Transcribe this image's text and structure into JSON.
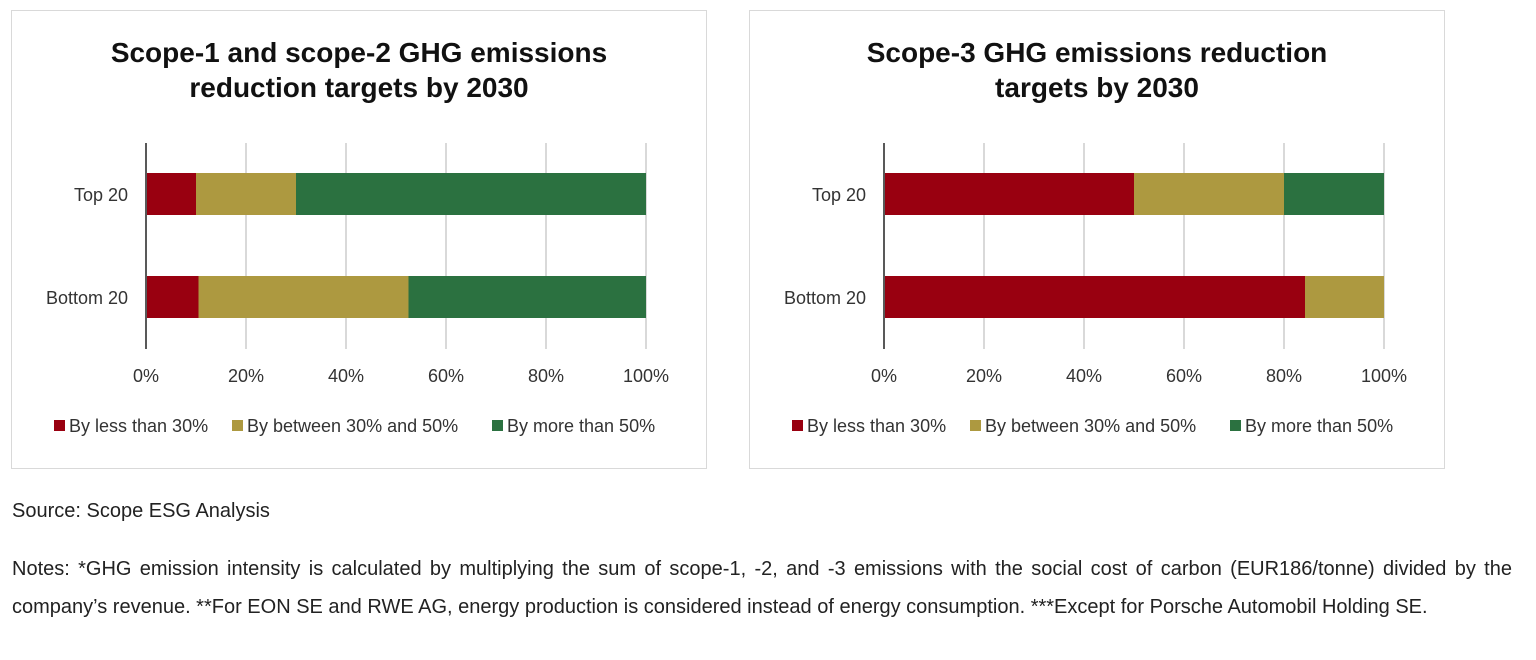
{
  "colors": {
    "less_than_30": "#990010",
    "between_30_50": "#ad9940",
    "more_than_50": "#2b7140",
    "grid": "#d9d9d9",
    "axis": "#595959"
  },
  "legend_labels": [
    "By less than 30%",
    "By between 30% and 50%",
    "By more than 50%"
  ],
  "chart_data": [
    {
      "type": "bar",
      "orientation": "horizontal",
      "stacked": true,
      "title": "Scope-1 and scope-2  GHG emissions\nreduction targets by 2030",
      "categories": [
        "Top 20",
        "Bottom 20"
      ],
      "series": [
        {
          "name": "By less than 30%",
          "values": [
            10,
            10.5
          ]
        },
        {
          "name": "By between 30% and 50%",
          "values": [
            20,
            42
          ]
        },
        {
          "name": "By more than 50%",
          "values": [
            70,
            47.5
          ]
        }
      ],
      "xlim": [
        0,
        100
      ],
      "x_ticks": [
        "0%",
        "20%",
        "40%",
        "60%",
        "80%",
        "100%"
      ],
      "grid": true,
      "legend_position": "bottom"
    },
    {
      "type": "bar",
      "orientation": "horizontal",
      "stacked": true,
      "title": "Scope-3 GHG emissions reduction\ntargets by 2030",
      "categories": [
        "Top 20",
        "Bottom 20"
      ],
      "series": [
        {
          "name": "By less than 30%",
          "values": [
            50,
            84.2
          ]
        },
        {
          "name": "By between 30% and 50%",
          "values": [
            30,
            15.8
          ]
        },
        {
          "name": "By more than 50%",
          "values": [
            20,
            0
          ]
        }
      ],
      "xlim": [
        0,
        100
      ],
      "x_ticks": [
        "0%",
        "20%",
        "40%",
        "60%",
        "80%",
        "100%"
      ],
      "grid": true,
      "legend_position": "bottom"
    }
  ],
  "source": "Source: Scope ESG Analysis",
  "notes": "Notes: *GHG emission intensity is calculated by multiplying the sum of scope-1, -2, and -3 emissions with the social cost of carbon (EUR186/tonne) divided by the company’s revenue. **For EON SE and RWE AG, energy production is considered instead of energy consumption. ***Except for Porsche Automobil Holding SE."
}
